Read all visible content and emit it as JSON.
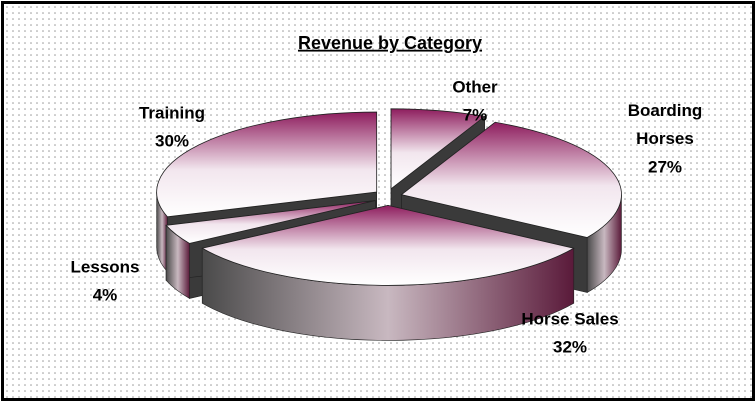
{
  "chart_data": {
    "type": "pie",
    "title": "Revenue by Category",
    "categories": [
      "Other",
      "Boarding Horses",
      "Horse Sales",
      "Lessons",
      "Training"
    ],
    "values": [
      7,
      27,
      32,
      4,
      30
    ],
    "value_labels": [
      "7%",
      "27%",
      "32%",
      "4%",
      "30%"
    ]
  }
}
